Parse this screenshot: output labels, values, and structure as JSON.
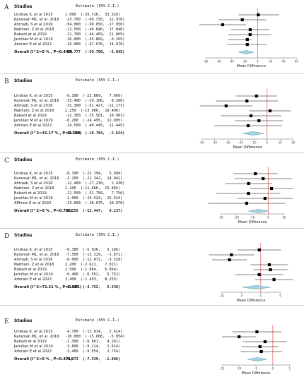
{
  "chart_data": [
    {
      "type": "forest",
      "panel": "A",
      "header": {
        "studies": "Studies",
        "estimate": "Estimate (95% C.I.)"
      },
      "studies": [
        {
          "name": "Lindsay K, et al 2015",
          "ci_text": "1.000  (-29.726,  33.326)",
          "estimate": 1.0,
          "lower": -29.726,
          "upper": 33.326
        },
        {
          "name": "Karamali M1, et al. 2016",
          "ci_text": "-23.700  (-60.370,  12.970)",
          "estimate": -23.7,
          "lower": -60.37,
          "upper": 12.97
        },
        {
          "name": "Ahmadi, S et al 2016",
          "ci_text": "-54.000  (-90.050, -17.950)",
          "estimate": -54.0,
          "lower": -90.05,
          "upper": -17.95
        },
        {
          "name": "Nabhani, Z et al 2018",
          "ci_text": "-11.500  (-40.840,  17.840)",
          "estimate": -11.5,
          "lower": -40.84,
          "upper": 17.84
        },
        {
          "name": "Babadi et al 2019",
          "ci_text": "-11.700  (-44.469,  21.069)",
          "estimate": -11.7,
          "lower": -44.469,
          "upper": 21.069
        },
        {
          "name": "Jamilian M et al 2019",
          "ci_text": "-16.000  (-45.869,  -9.269)",
          "estimate": -16.0,
          "lower": -45.869,
          "upper": -9.269
        },
        {
          "name": "Amirani E et al 2022",
          "ci_text": "-16.000  (-47.676,  14.076)",
          "estimate": -16.0,
          "lower": -47.676,
          "upper": 14.076
        }
      ],
      "overall": {
        "label": "Overall (I^2=0 % , P=0.449)",
        "ci_text": "-17.777  (-29.709,  -5.845)",
        "estimate": -17.777,
        "lower": -29.709,
        "upper": -5.845
      },
      "xticks": [
        "-80",
        "-60",
        "-40",
        "-20",
        "0",
        "20",
        "40",
        "60"
      ],
      "xlim": [
        -90,
        65
      ],
      "xlabel": "Mean Difference"
    },
    {
      "type": "forest",
      "panel": "B",
      "header": {
        "studies": "Studies",
        "estimate": "Estimate (95% C.I.)"
      },
      "studies": [
        {
          "name": "Lindsay K, et al 2015",
          "ci_text": "-8.100  (-23.869,   7.669)",
          "estimate": -8.1,
          "lower": -23.869,
          "upper": 7.669
        },
        {
          "name": "Karamali M1, et al. 2016",
          "ci_text": "-15.400  (-39.106,   8.306)",
          "estimate": -15.4,
          "lower": -39.106,
          "upper": 8.306
        },
        {
          "name": "Ahmadi, S et al 2016",
          "ci_text": "-31.300  (-51.427, -11.173)",
          "estimate": -31.3,
          "lower": -51.427,
          "upper": -11.173
        },
        {
          "name": "Nabhani, Z et al 2018",
          "ci_text": "2.250  (-13.906,  18.406)",
          "estimate": 2.25,
          "lower": -13.906,
          "upper": 18.406
        },
        {
          "name": "Babadi et al 2019",
          "ci_text": "-12.300  (-35.501,  10.901)",
          "estimate": -12.3,
          "lower": -35.501,
          "upper": 10.901
        },
        {
          "name": "Jamilian M et al 2019",
          "ci_text": "-6.200  (-24.495,  12.095)",
          "estimate": -6.2,
          "lower": -24.495,
          "upper": 12.095
        },
        {
          "name": "Amirani E et al 2022",
          "ci_text": "-14.500  (-40.445,  11.445)",
          "estimate": -14.5,
          "lower": -40.445,
          "upper": 11.445
        }
      ],
      "overall": {
        "label": "Overall (I^2=15.17 % , P=0.314)",
        "ci_text": "-10.704  (-18.784,  -2.624)",
        "estimate": -10.704,
        "lower": -18.784,
        "upper": -2.624
      },
      "xticks": [
        "-50",
        "-40",
        "-30",
        "-20",
        "-10",
        "0",
        "10",
        "20"
      ],
      "xlim": [
        -55,
        25
      ],
      "xlabel": "Mean Difference"
    },
    {
      "type": "forest",
      "panel": "C",
      "header": {
        "studies": "Studies",
        "estimate": "Estimate (95% C.I.)"
      },
      "studies": [
        {
          "name": "Lindsay K, et al 2015",
          "ci_text": "-8.100  (-22.194,   5.994)",
          "estimate": -8.1,
          "lower": -22.194,
          "upper": 5.994
        },
        {
          "name": "Karamali M1, et al. 2016",
          "ci_text": "-3.200  (-21.342,  14.942)",
          "estimate": -3.2,
          "lower": -21.342,
          "upper": 14.942
        },
        {
          "name": "Ahmadi, S et al 2016",
          "ci_text": "-12.400  (-27.230,   2.430)",
          "estimate": -12.4,
          "lower": -27.23,
          "upper": 2.43
        },
        {
          "name": "Nabhani, Z et al 2018",
          "ci_text": "2.100  (-11.666,  15.866)",
          "estimate": 2.1,
          "lower": -11.666,
          "upper": 15.866
        },
        {
          "name": "Babadi et al 2019",
          "ci_text": "-12.500  (-32.756,   7.756)",
          "estimate": -12.5,
          "lower": -32.756,
          "upper": 7.756
        },
        {
          "name": "Jamilian M et al 2019",
          "ci_text": "-2.000  (-19.524,  15.524)",
          "estimate": -2.0,
          "lower": -19.524,
          "upper": 15.524
        },
        {
          "name": "AMirani E et al 2022",
          "ci_text": "-13.600  (-38.076,  10.876)",
          "estimate": -13.6,
          "lower": -38.076,
          "upper": 10.876
        }
      ],
      "overall": {
        "label": "Overall (I^2=0 % , P=0.785)",
        "ci_text": "-6.155  (-12.447,   0.137)",
        "estimate": -6.155,
        "lower": -12.447,
        "upper": 0.137
      },
      "xticks": [
        "-30",
        "-20",
        "-10",
        "0",
        "10"
      ],
      "xlim": [
        -40,
        20
      ],
      "xlabel": "Mean Difference"
    },
    {
      "type": "forest",
      "panel": "D",
      "header": {
        "studies": "Studies",
        "estimate": "Estimate (95% C.I.)"
      },
      "studies": [
        {
          "name": "Lindsay K, et al 2015",
          "ci_text": "-0.380  (-5.926,   5.166)",
          "estimate": -0.38,
          "lower": -5.926,
          "upper": 5.166
        },
        {
          "name": "Karamali M1, et al. 2016",
          "ci_text": "-7.500  (-13.329,  -1.671)",
          "estimate": -7.5,
          "lower": -13.329,
          "upper": -1.671
        },
        {
          "name": "Ahmadi, S et al 2016",
          "ci_text": "-8.000  (-12.472,  -3.528)",
          "estimate": -8.0,
          "lower": -12.472,
          "upper": -3.528
        },
        {
          "name": "Nabhani, Z et al 2018",
          "ci_text": "2.200  (-2.621,   7.021)",
          "estimate": 2.2,
          "lower": -2.621,
          "upper": 7.021
        },
        {
          "name": "Babadi et al 2019",
          "ci_text": "2.500  (-1.864,   6.864)",
          "estimate": 2.5,
          "lower": -1.864,
          "upper": 6.864
        },
        {
          "name": "Jamilian M et al 2019",
          "ci_text": "-0.400  (-6.552,   5.752)",
          "estimate": -0.4,
          "lower": -6.552,
          "upper": 5.752
        },
        {
          "name": "Amirani E et al 2022",
          "ci_text": "3.400  (-1.453,   8.253)",
          "estimate": 3.4,
          "lower": -1.453,
          "upper": 8.253
        }
      ],
      "overall": {
        "label": "Overall (I^2=72.21 % , P=0.001)",
        "ci_text": "-1.107  (-4.752,   2.538)",
        "estimate": -1.107,
        "lower": -4.752,
        "upper": 2.538
      },
      "xticks": [
        "-10",
        "-5",
        "0",
        "5"
      ],
      "xlim": [
        -15,
        10
      ],
      "xlabel": "Mean Difference"
    },
    {
      "type": "forest",
      "panel": "E",
      "header": {
        "studies": "Studies",
        "estimate": "Estimate (95% C.I.)"
      },
      "studies": [
        {
          "name": "Lindsay K, et al 2015",
          "ci_text": "-4.700  (-12.014,   2.614)",
          "estimate": -4.7,
          "lower": -12.014,
          "upper": 2.614
        },
        {
          "name": "Karamali M1, et al. 2016",
          "ci_text": "-10.000  (-15.006,  -5.054)",
          "estimate": -10.0,
          "lower": -15.006,
          "upper": -5.054
        },
        {
          "name": "Babadi et al 2019",
          "ci_text": "-2.300  (-8.861,   4.261)",
          "estimate": -2.3,
          "lower": -8.861,
          "upper": 4.261
        },
        {
          "name": "Jamilian M et al 2019",
          "ci_text": "-3.800  (-9.214,   1.614)",
          "estimate": -3.8,
          "lower": -9.214,
          "upper": 1.614
        },
        {
          "name": "Amirani E et al 2022",
          "ci_text": "-3.400  (-9.554,   2.754)",
          "estimate": -3.4,
          "lower": -9.554,
          "upper": 2.754
        }
      ],
      "overall": {
        "label": "Overall (I^2=0 % , P=0.471)",
        "ci_text": "-4.673  (-7.539,  -1.806)",
        "estimate": -4.673,
        "lower": -7.539,
        "upper": -1.806
      },
      "xticks": [
        "-15",
        "-10",
        "-5",
        "0",
        "5"
      ],
      "xlim": [
        -18,
        8
      ],
      "xlabel": "Mean Difference"
    }
  ],
  "colors": {
    "null_line": "#e05555",
    "diamond_fill": "#a9d3e0",
    "diamond_stroke": "#5a9bb0",
    "marker": "#000000",
    "ci_line": "#000000",
    "axis": "#666666"
  }
}
